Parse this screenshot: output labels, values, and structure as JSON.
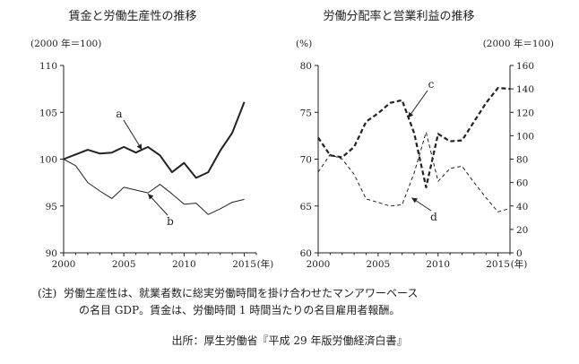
{
  "chart_data": [
    {
      "type": "line",
      "title": "賃金と労働生産性の推移",
      "ylabel": "(2000 年＝100)",
      "xlabel": "(年)",
      "xlim": [
        2000,
        2016
      ],
      "ylim": [
        90,
        110
      ],
      "x_ticks": [
        2000,
        2005,
        2010,
        2015
      ],
      "y_ticks": [
        90,
        95,
        100,
        105,
        110
      ],
      "grid": false,
      "series": [
        {
          "name": "a",
          "style": "solid-thick",
          "x": [
            2000,
            2001,
            2002,
            2003,
            2004,
            2005,
            2006,
            2007,
            2008,
            2009,
            2010,
            2011,
            2012,
            2013,
            2014,
            2015
          ],
          "values": [
            100,
            100.5,
            101,
            100.6,
            100.7,
            101.3,
            100.7,
            101.3,
            100.4,
            98.6,
            99.6,
            98.0,
            98.6,
            100.9,
            102.8,
            106.1
          ]
        },
        {
          "name": "b",
          "style": "solid-thin",
          "x": [
            2000,
            2001,
            2002,
            2003,
            2004,
            2005,
            2006,
            2007,
            2008,
            2009,
            2010,
            2011,
            2012,
            2013,
            2014,
            2015
          ],
          "values": [
            100,
            99.3,
            97.5,
            96.6,
            95.8,
            97.0,
            96.7,
            96.4,
            97.3,
            96.3,
            95.2,
            95.3,
            94.1,
            94.7,
            95.4,
            95.7
          ]
        }
      ]
    },
    {
      "type": "line",
      "title": "労働分配率と営業利益の推移",
      "ylabel": "(%)",
      "y2label": "(2000 年＝100)",
      "xlabel": "(年)",
      "xlim": [
        2000,
        2016
      ],
      "ylim": [
        60,
        80
      ],
      "y2lim": [
        0,
        160
      ],
      "x_ticks": [
        2000,
        2005,
        2010,
        2015
      ],
      "y_ticks": [
        60,
        65,
        70,
        75,
        80
      ],
      "y2_ticks": [
        0,
        20,
        40,
        60,
        80,
        100,
        120,
        140,
        160
      ],
      "grid": false,
      "series": [
        {
          "name": "c",
          "style": "dashed-thick",
          "axis": "left",
          "x": [
            2000,
            2001,
            2002,
            2003,
            2004,
            2005,
            2006,
            2007,
            2008,
            2009,
            2010,
            2011,
            2012,
            2013,
            2014,
            2015,
            2016
          ],
          "values": [
            72.3,
            70.4,
            70.2,
            71.3,
            74.0,
            74.9,
            76.0,
            76.3,
            72.8,
            67.0,
            72.7,
            71.9,
            72.0,
            74.0,
            76.0,
            77.6,
            77.5
          ]
        },
        {
          "name": "d",
          "style": "dashed-thin",
          "axis": "right",
          "x": [
            2000,
            2001,
            2002,
            2003,
            2004,
            2005,
            2006,
            2007,
            2008,
            2009,
            2010,
            2011,
            2012,
            2013,
            2014,
            2015,
            2016
          ],
          "values": [
            69,
            84,
            80,
            67,
            46,
            43,
            40,
            41,
            68,
            103,
            61,
            72,
            74,
            60,
            47,
            35,
            38
          ]
        }
      ]
    }
  ],
  "note": {
    "prefix": "(注)",
    "line1": "労働生産性は、就業者数に総実労働時間を掛け合わせたマンアワーベース",
    "line2": "の名目 GDP。賃金は、労働時間 1 時間当たりの名目雇用者報酬。"
  },
  "source": "出所：厚生労働省『平成 29 年版労働経済白書』"
}
